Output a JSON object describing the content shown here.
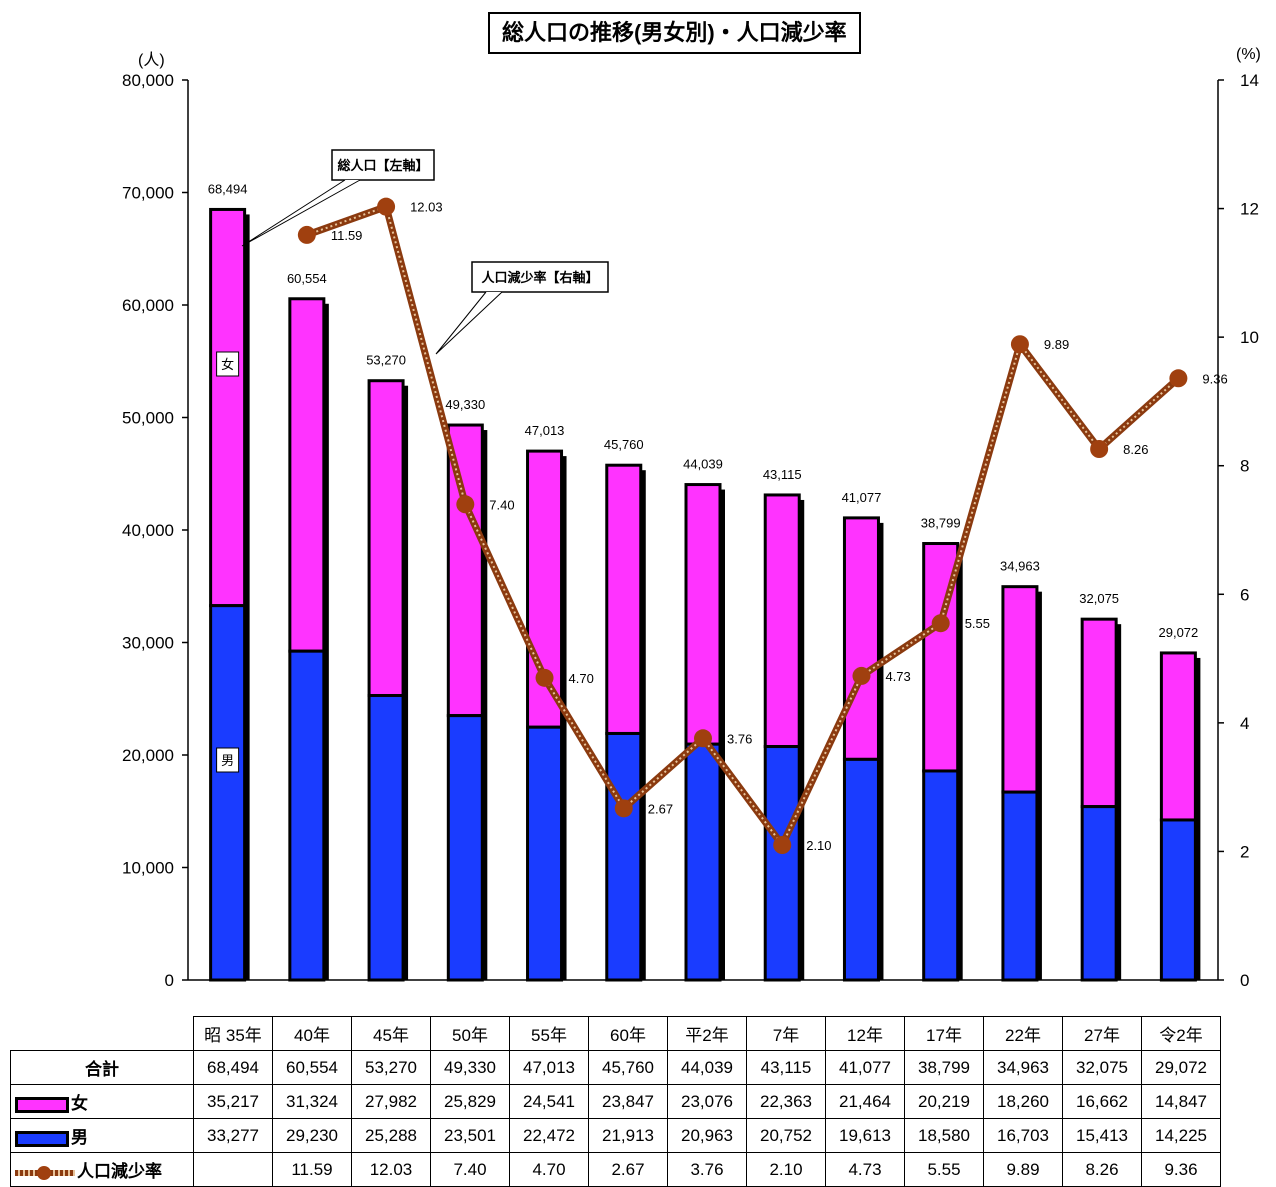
{
  "title": "総人口の推移(男女別)・人口減少率",
  "left_unit": "(人)",
  "right_unit": "(%)",
  "colors": {
    "female": "#ff33ff",
    "male": "#1a3cff",
    "line": "#a0400f"
  },
  "chart_data": {
    "type": "bar",
    "stacked": true,
    "categories": [
      "昭 35年",
      "40年",
      "45年",
      "50年",
      "55年",
      "60年",
      "平2年",
      "7年",
      "12年",
      "17年",
      "22年",
      "27年",
      "令2年"
    ],
    "series": [
      {
        "name": "男",
        "axis": "left",
        "values": [
          33277,
          29230,
          25288,
          23501,
          22472,
          21913,
          20963,
          20752,
          19613,
          18580,
          16703,
          15413,
          14225
        ]
      },
      {
        "name": "女",
        "axis": "left",
        "values": [
          35217,
          31324,
          27982,
          25829,
          24541,
          23847,
          23076,
          22363,
          21464,
          20219,
          18260,
          16662,
          14847
        ]
      },
      {
        "name": "人口減少率",
        "type": "line",
        "axis": "right",
        "values": [
          null,
          11.59,
          12.03,
          7.4,
          4.7,
          2.67,
          3.76,
          2.1,
          4.73,
          5.55,
          9.89,
          8.26,
          9.36
        ]
      }
    ],
    "totals": [
      68494,
      60554,
      53270,
      49330,
      47013,
      45760,
      44039,
      43115,
      41077,
      38799,
      34963,
      32075,
      29072
    ],
    "total_labels": [
      "68,494",
      "60,554",
      "53,270",
      "49,330",
      "47,013",
      "45,760",
      "44,039",
      "43,115",
      "41,077",
      "38,799",
      "34,963",
      "32,075",
      "29,072"
    ],
    "rate_labels": [
      "",
      "11.59",
      "12.03",
      "7.40",
      "4.70",
      "2.67",
      "3.76",
      "2.10",
      "4.73",
      "5.55",
      "9.89",
      "8.26",
      "9.36"
    ],
    "ylim_left": [
      0,
      80000
    ],
    "yticks_left": [
      "0",
      "10,000",
      "20,000",
      "30,000",
      "40,000",
      "50,000",
      "60,000",
      "70,000",
      "80,000"
    ],
    "ylim_right": [
      0,
      14
    ],
    "yticks_right": [
      "0",
      "2",
      "4",
      "6",
      "8",
      "10",
      "12",
      "14"
    ],
    "annotations": {
      "total_callout": "総人口【左軸】",
      "rate_callout": "人口減少率【右軸】",
      "female_tag": "女",
      "male_tag": "男"
    },
    "grid": false
  },
  "table": {
    "rows": [
      {
        "label": "合計",
        "values": [
          "68,494",
          "60,554",
          "53,270",
          "49,330",
          "47,013",
          "45,760",
          "44,039",
          "43,115",
          "41,077",
          "38,799",
          "34,963",
          "32,075",
          "29,072"
        ]
      },
      {
        "label": "女",
        "values": [
          "35,217",
          "31,324",
          "27,982",
          "25,829",
          "24,541",
          "23,847",
          "23,076",
          "22,363",
          "21,464",
          "20,219",
          "18,260",
          "16,662",
          "14,847"
        ]
      },
      {
        "label": "男",
        "values": [
          "33,277",
          "29,230",
          "25,288",
          "23,501",
          "22,472",
          "21,913",
          "20,963",
          "20,752",
          "19,613",
          "18,580",
          "16,703",
          "15,413",
          "14,225"
        ]
      },
      {
        "label": "人口減少率",
        "values": [
          "",
          "11.59",
          "12.03",
          "7.40",
          "4.70",
          "2.67",
          "3.76",
          "2.10",
          "4.73",
          "5.55",
          "9.89",
          "8.26",
          "9.36"
        ]
      }
    ]
  }
}
